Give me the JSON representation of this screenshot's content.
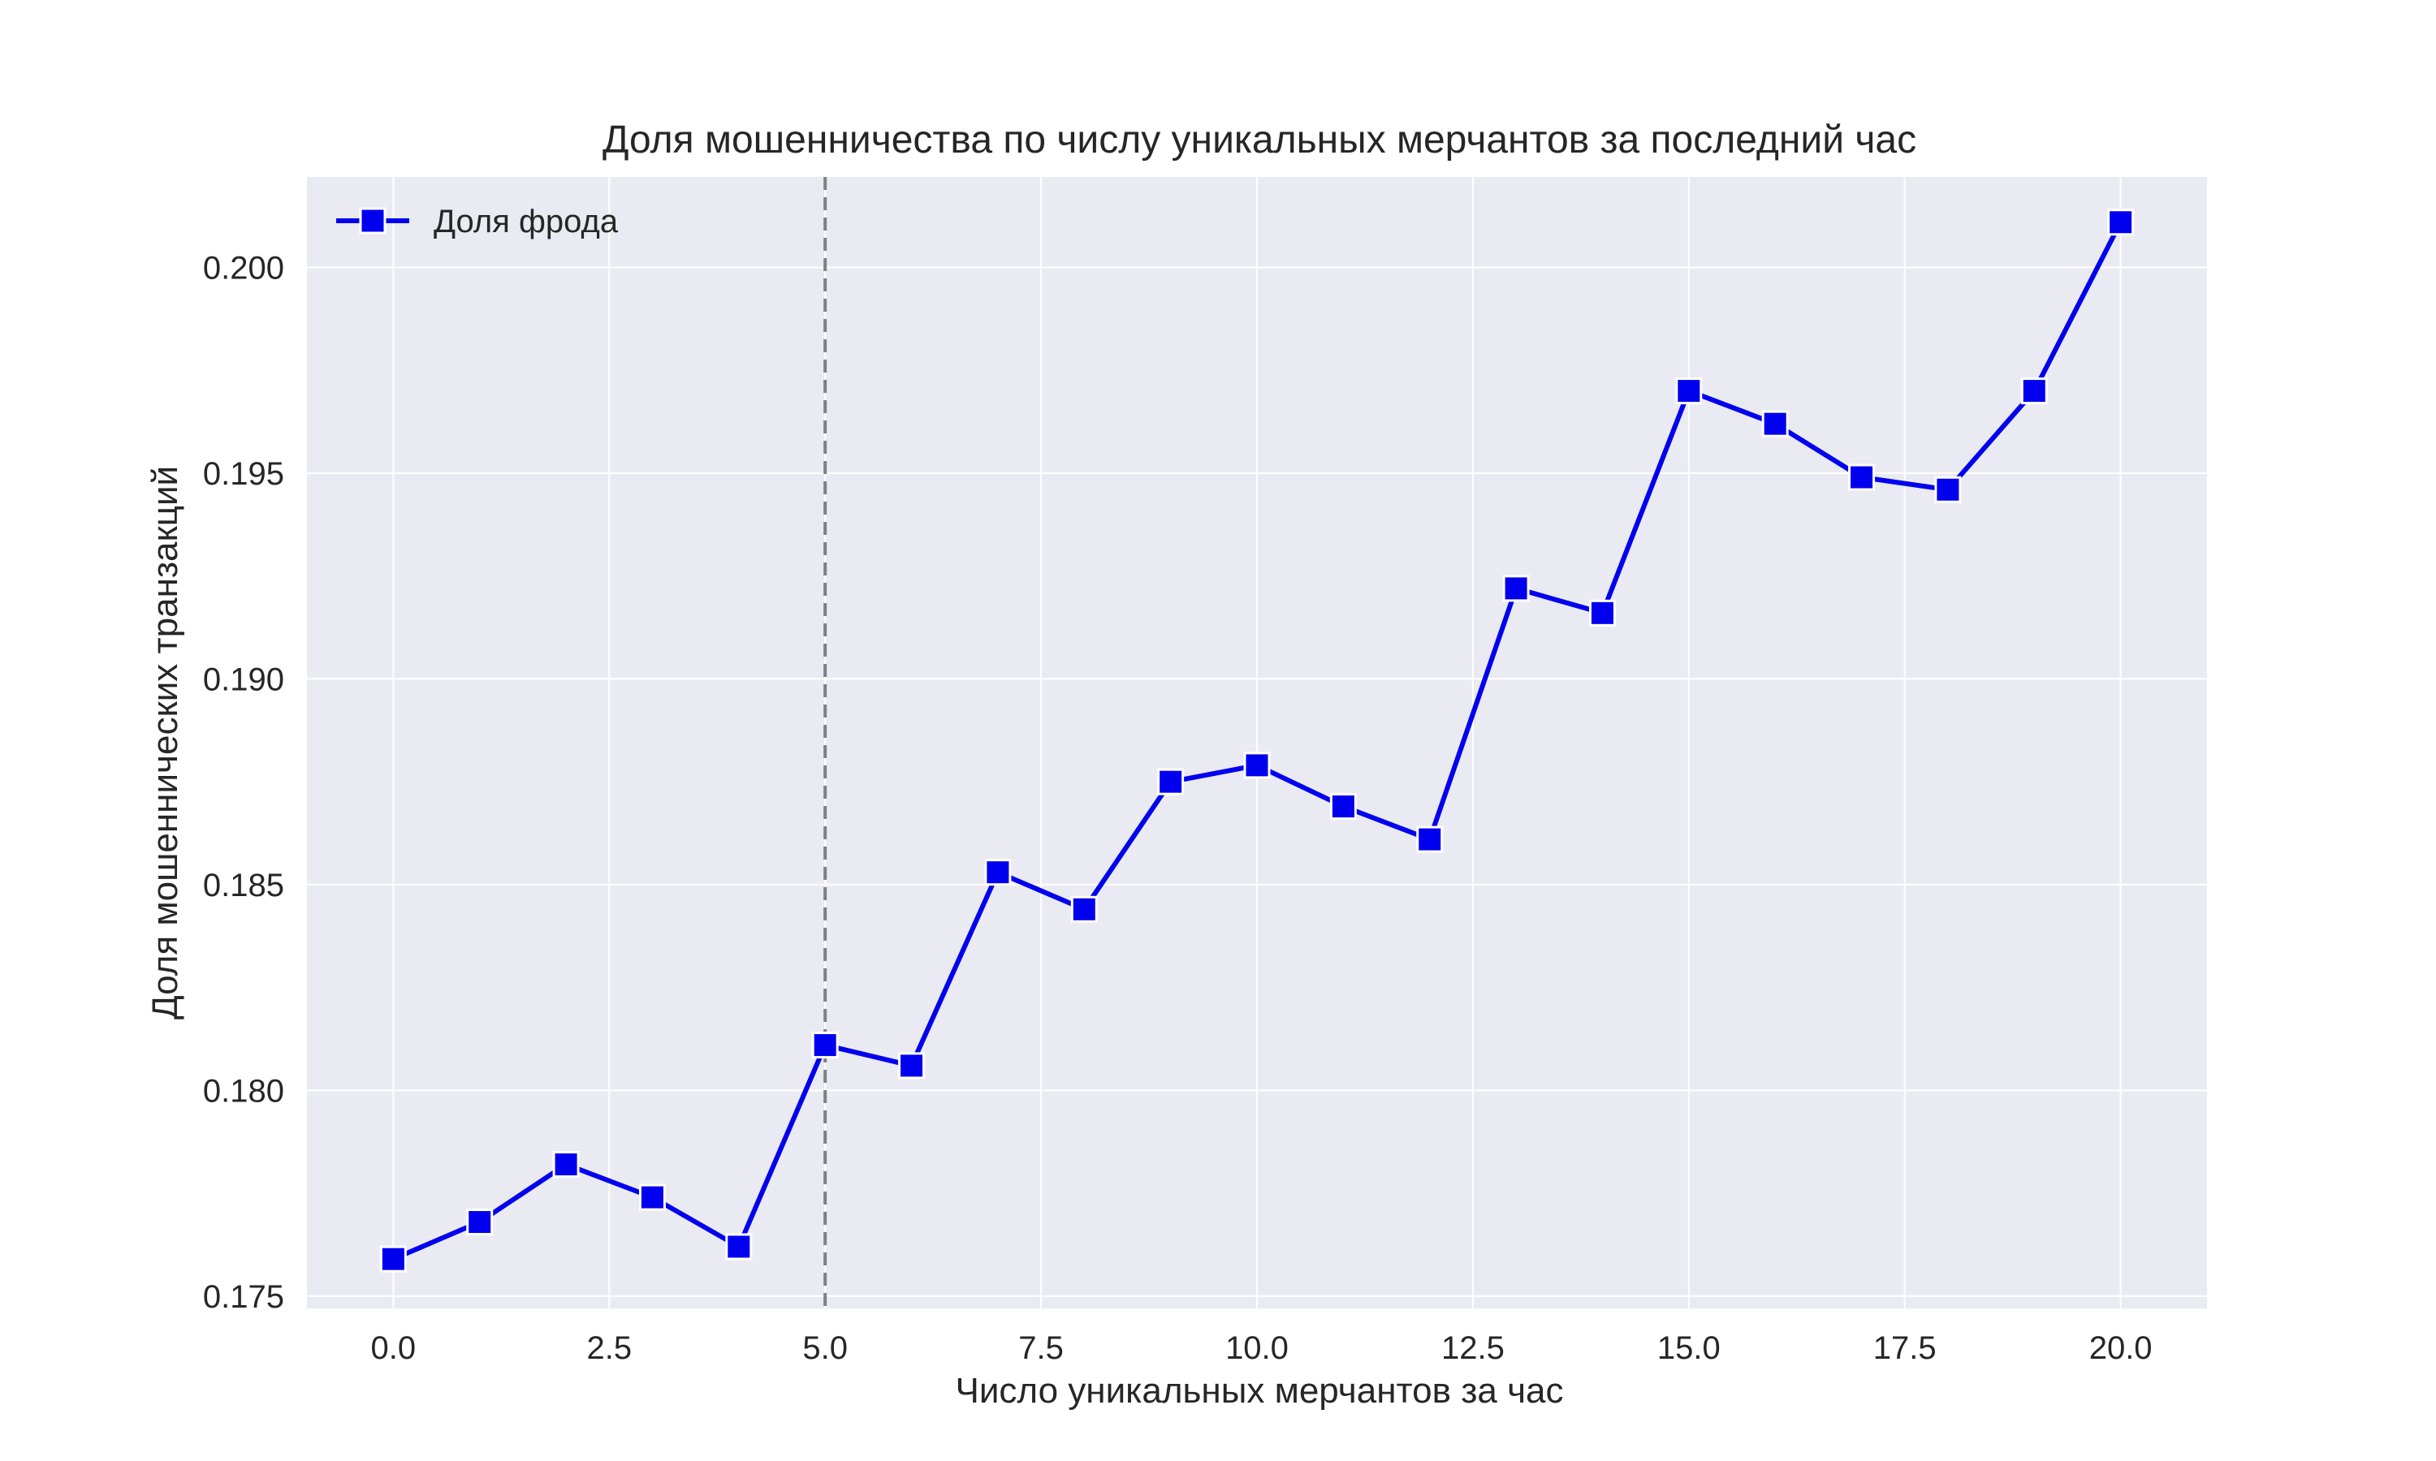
{
  "chart_data": {
    "type": "line",
    "title": "Доля мошенничества по числу уникальных мерчантов за последний час",
    "xlabel": "Число уникальных мерчантов за час",
    "ylabel": "Доля мошеннических транзакций",
    "xlim": [
      -1.0,
      21.0
    ],
    "ylim": [
      0.1747,
      0.2022
    ],
    "xticks": [
      0.0,
      2.5,
      5.0,
      7.5,
      10.0,
      12.5,
      15.0,
      17.5,
      20.0
    ],
    "xtick_labels": [
      "0.0",
      "2.5",
      "5.0",
      "7.5",
      "10.0",
      "12.5",
      "15.0",
      "17.5",
      "20.0"
    ],
    "yticks": [
      0.175,
      0.18,
      0.185,
      0.19,
      0.195,
      0.2
    ],
    "ytick_labels": [
      "0.175",
      "0.180",
      "0.185",
      "0.190",
      "0.195",
      "0.200"
    ],
    "grid": true,
    "legend_position": "upper-left",
    "reference_line": {
      "x": 5.0,
      "style": "dashed",
      "color": "#808080"
    },
    "series": [
      {
        "name": "Доля фрода",
        "color": "#0000ee",
        "marker": "square",
        "x": [
          0,
          1,
          2,
          3,
          4,
          5,
          6,
          7,
          8,
          9,
          10,
          11,
          12,
          13,
          14,
          15,
          16,
          17,
          18,
          19,
          20
        ],
        "values": [
          0.1759,
          0.1768,
          0.1782,
          0.1774,
          0.1762,
          0.1811,
          0.1806,
          0.1853,
          0.1844,
          0.1875,
          0.1879,
          0.1869,
          0.1861,
          0.1922,
          0.1916,
          0.197,
          0.1962,
          0.1949,
          0.1946,
          0.197,
          0.2011
        ]
      }
    ]
  }
}
